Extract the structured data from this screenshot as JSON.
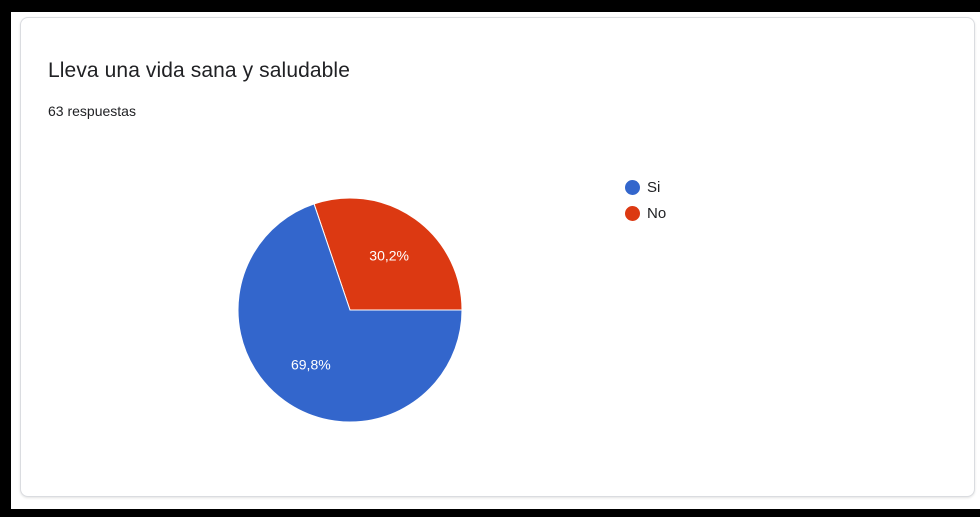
{
  "card": {
    "title": "Lleva una vida sana y saludable",
    "subtitle": "63 respuestas"
  },
  "chart_data": {
    "type": "pie",
    "categories": [
      "Si",
      "No"
    ],
    "values": [
      69.8,
      30.2
    ],
    "labels": [
      "69,8%",
      "30,2%"
    ],
    "colors": [
      "#3366cc",
      "#dc3912"
    ],
    "legend_position": "right"
  }
}
